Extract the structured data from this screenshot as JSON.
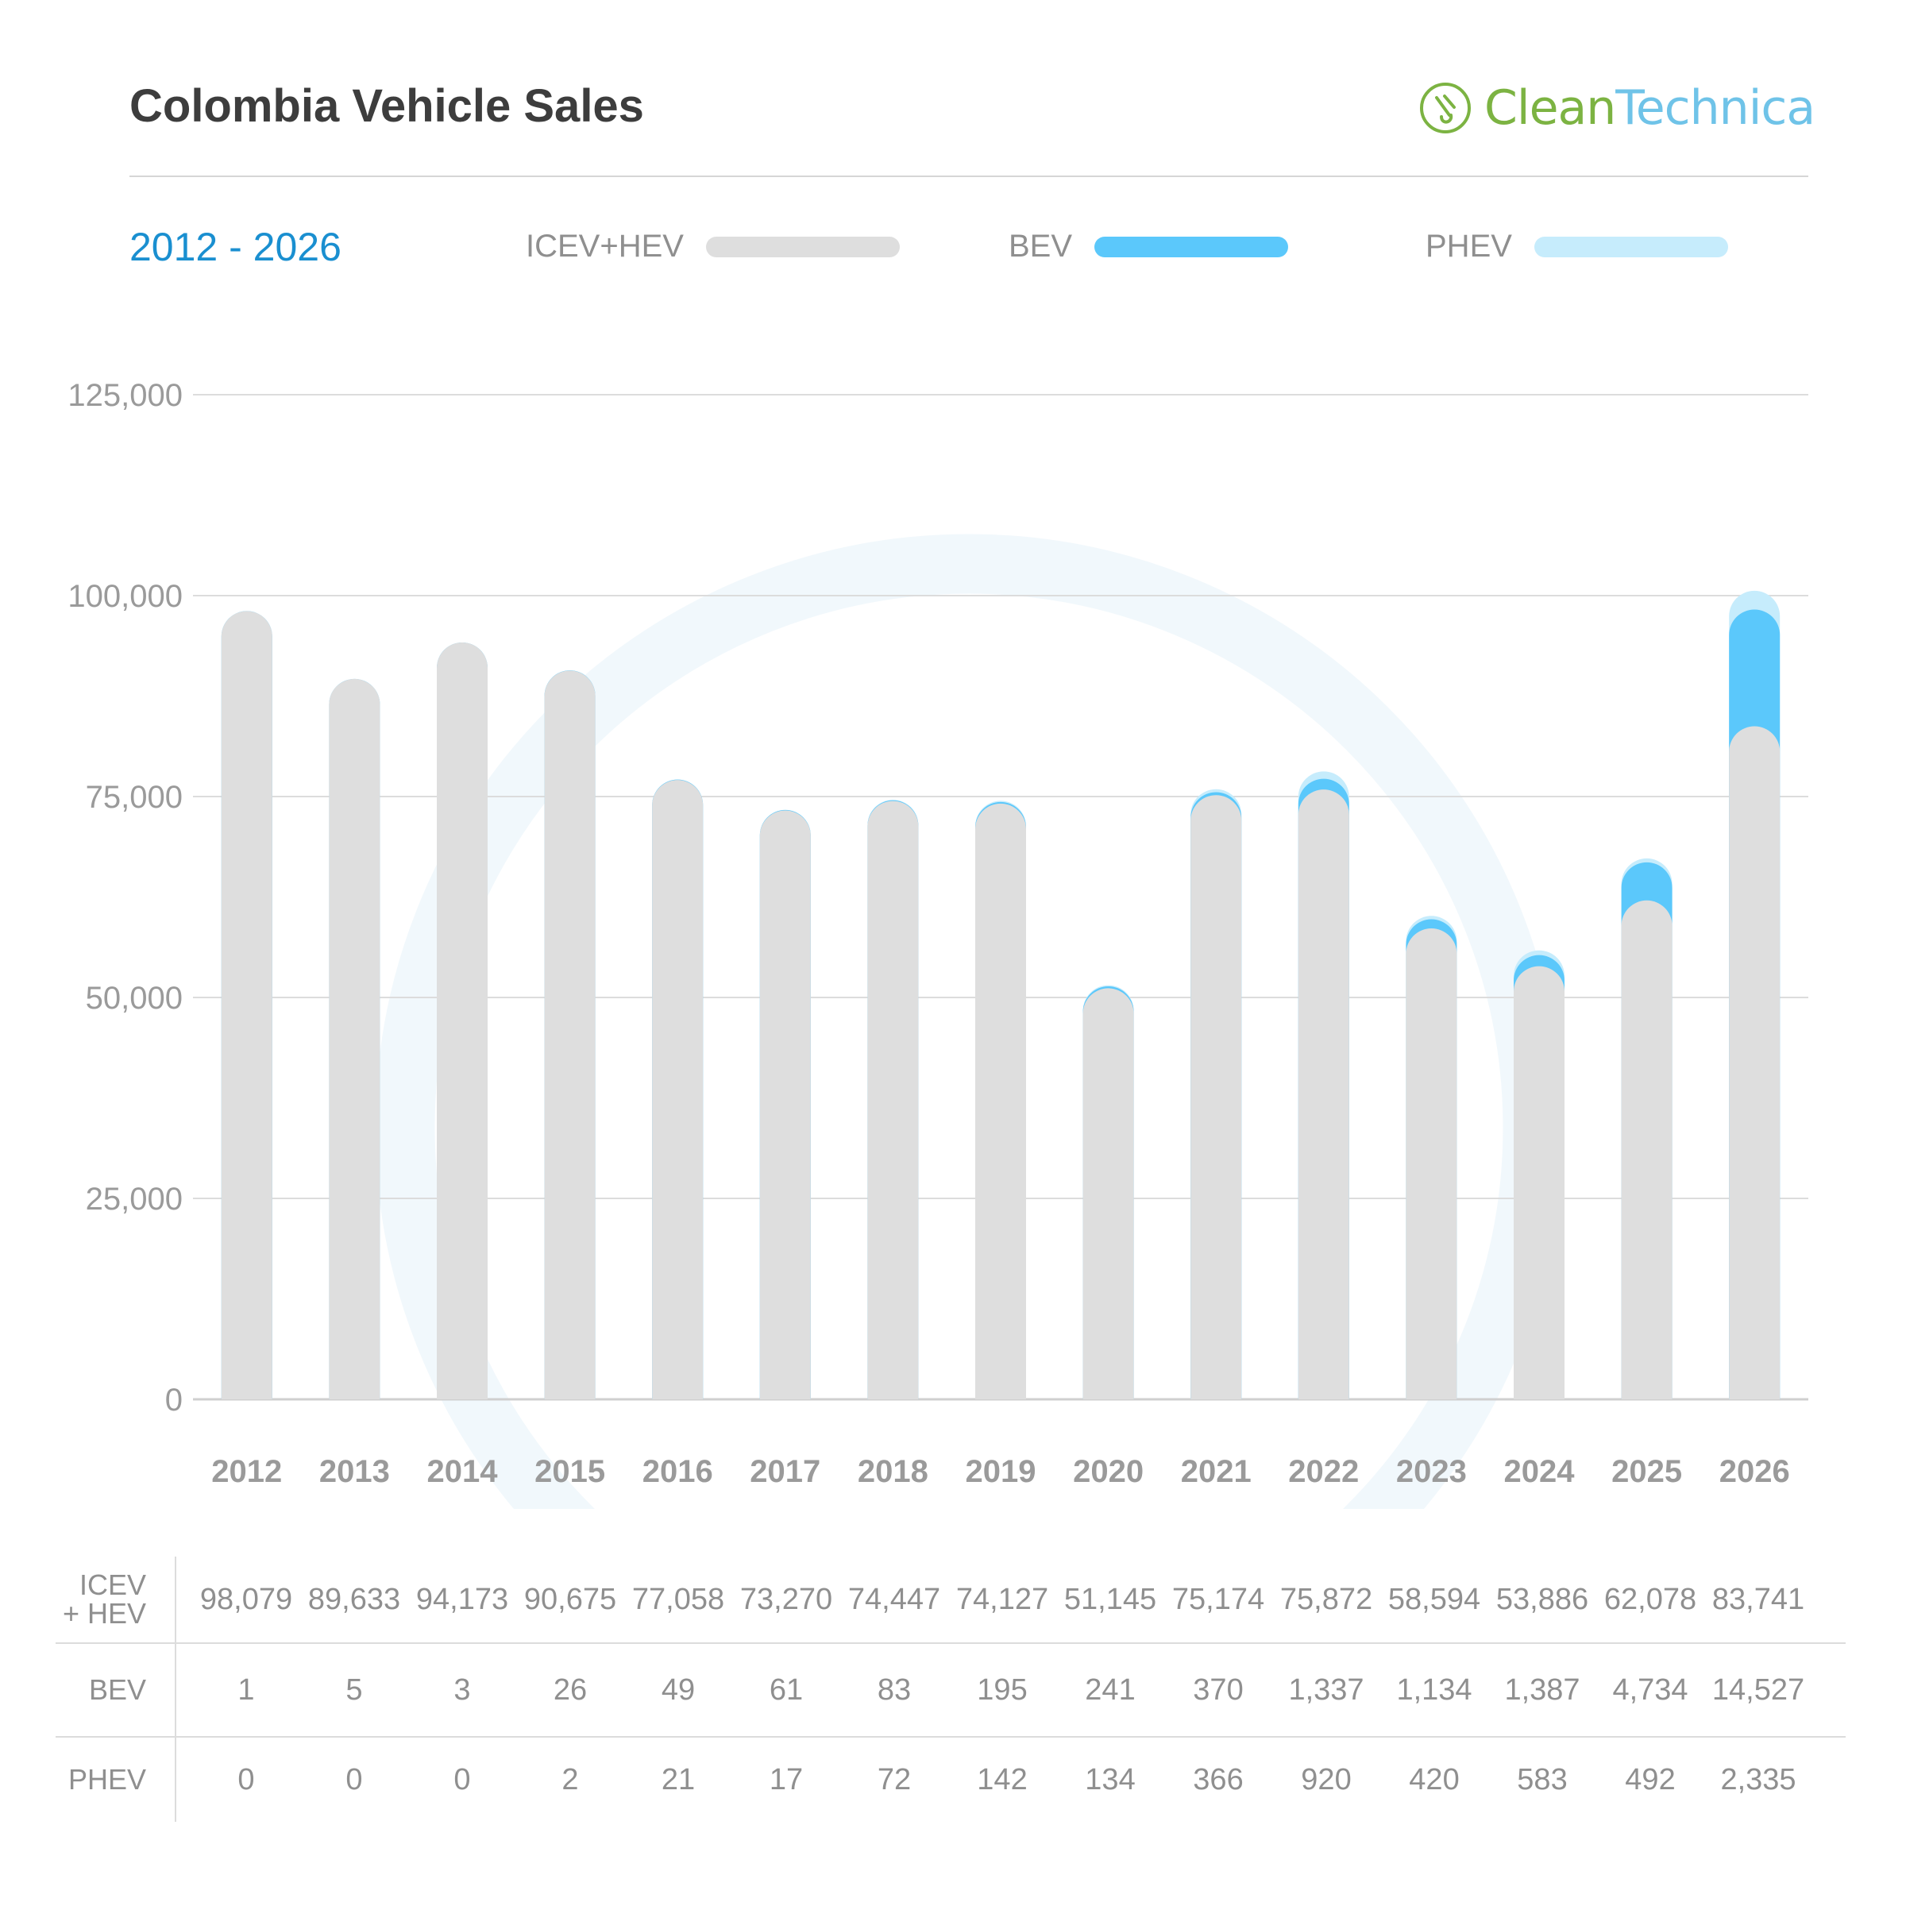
{
  "header": {
    "title": "Colombia Vehicle Sales",
    "logo": {
      "part1": "Clean",
      "part2": "Technica",
      "icon": "plug-icon"
    },
    "period": "2012 - 2026"
  },
  "colors": {
    "icev": "#dedede",
    "bev": "#5bc8fb",
    "phev": "#c6ecfc",
    "accent": "#1a8fd0"
  },
  "legend": [
    {
      "label": "ICEV+HEV",
      "color": "#dedede"
    },
    {
      "label": "BEV",
      "color": "#5bc8fb"
    },
    {
      "label": "PHEV",
      "color": "#c6ecfc"
    }
  ],
  "chart_data": {
    "type": "bar",
    "stacked": true,
    "title": "Colombia Vehicle Sales",
    "subtitle": "2012 - 2026",
    "categories": [
      "2012",
      "2013",
      "2014",
      "2015",
      "2016",
      "2017",
      "2018",
      "2019",
      "2020",
      "2021",
      "2022",
      "2023",
      "2024",
      "2025",
      "2026"
    ],
    "series": [
      {
        "name": "ICEV+HEV",
        "values": [
          98079,
          89633,
          94173,
          90675,
          77058,
          73270,
          74447,
          74127,
          51145,
          75174,
          75872,
          58594,
          53886,
          62078,
          83741
        ]
      },
      {
        "name": "BEV",
        "values": [
          1,
          5,
          3,
          26,
          49,
          61,
          83,
          195,
          241,
          370,
          1337,
          1134,
          1387,
          4734,
          14527
        ]
      },
      {
        "name": "PHEV",
        "values": [
          0,
          0,
          0,
          2,
          21,
          17,
          72,
          142,
          134,
          366,
          920,
          420,
          583,
          492,
          2335
        ]
      }
    ],
    "yticks": [
      "0",
      "25,000",
      "50,000",
      "75,000",
      "100,000",
      "125,000"
    ],
    "ylim": [
      0,
      125000
    ],
    "grid": true,
    "legend_position": "top"
  },
  "table": {
    "rows": [
      {
        "label": "ICEV\n+ HEV",
        "values": [
          "98,079",
          "89,633",
          "94,173",
          "90,675",
          "77,058",
          "73,270",
          "74,447",
          "74,127",
          "51,145",
          "75,174",
          "75,872",
          "58,594",
          "53,886",
          "62,078",
          "83,741"
        ]
      },
      {
        "label": "BEV",
        "values": [
          "1",
          "5",
          "3",
          "26",
          "49",
          "61",
          "83",
          "195",
          "241",
          "370",
          "1,337",
          "1,134",
          "1,387",
          "4,734",
          "14,527"
        ]
      },
      {
        "label": "PHEV",
        "values": [
          "0",
          "0",
          "0",
          "2",
          "21",
          "17",
          "72",
          "142",
          "134",
          "366",
          "920",
          "420",
          "583",
          "492",
          "2,335"
        ]
      }
    ]
  }
}
